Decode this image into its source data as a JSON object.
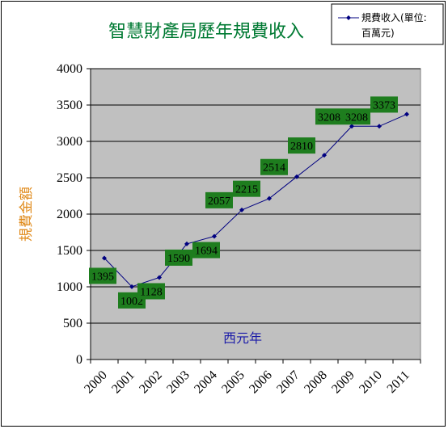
{
  "chart_data": {
    "type": "line",
    "title": "智慧財產局歷年規費收入",
    "xlabel": "西元年",
    "ylabel": "規費金額",
    "categories": [
      "2000",
      "2001",
      "2002",
      "2003",
      "2004",
      "2005",
      "2006",
      "2007",
      "2008",
      "2009",
      "2010",
      "2011"
    ],
    "series": [
      {
        "name": "規費收入(單位:百萬元)",
        "values": [
          1395,
          1002,
          1128,
          1590,
          1694,
          2057,
          2215,
          2514,
          2810,
          3208,
          3208,
          3373
        ],
        "color": "#000080"
      }
    ],
    "ylim": [
      0,
      4000
    ],
    "yticks": [
      0,
      500,
      1000,
      1500,
      2000,
      2500,
      3000,
      3500,
      4000
    ],
    "grid": true,
    "legend_position": "top-right",
    "plot_bg": "#c0c0c0",
    "label_bg": "#1e7d1e"
  }
}
